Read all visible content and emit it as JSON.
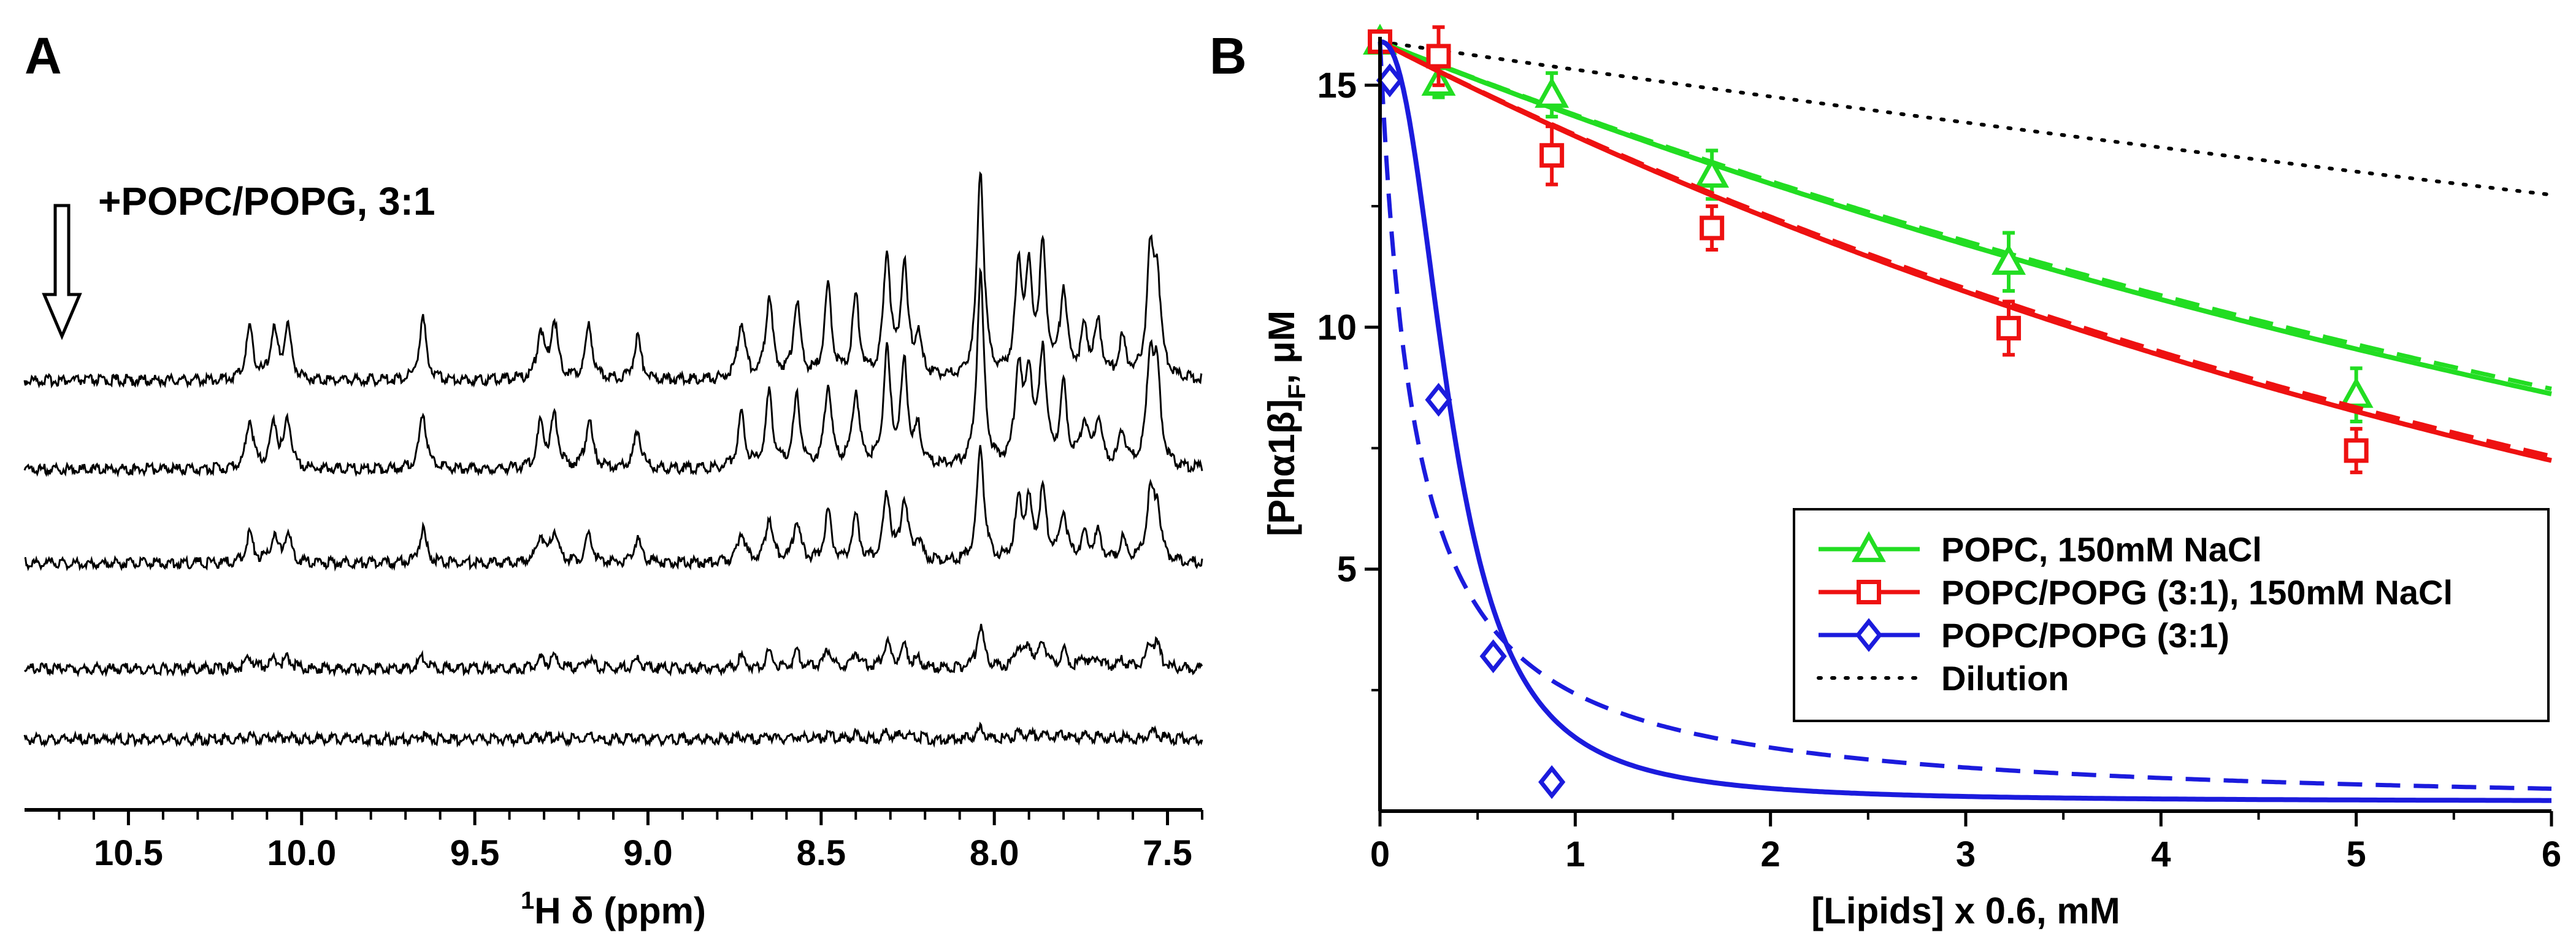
{
  "panels": {
    "a": {
      "letter": "A"
    },
    "b": {
      "letter": "B"
    }
  },
  "chart_data": [
    {
      "type": "line",
      "panel": "A",
      "title": "",
      "xlabel_sup": "1",
      "xlabel": "H δ (ppm)",
      "ylabel": "",
      "xlim": [
        10.8,
        7.4
      ],
      "x_reversed": true,
      "x_ticks": [
        10.5,
        10.0,
        9.5,
        9.0,
        8.5,
        8.0,
        7.5
      ],
      "x_tick_labels": [
        "10.5",
        "10.0",
        "9.5",
        "9.0",
        "8.5",
        "8.0",
        "7.5"
      ],
      "annotation": "+POPC/POPG, 3:1",
      "arrow_direction": "down",
      "grid": false,
      "series": [
        {
          "scale": 1.0,
          "peaks": [
            [
              10.15,
              0.55
            ],
            [
              10.08,
              0.5
            ],
            [
              10.04,
              0.55
            ],
            [
              9.65,
              0.65
            ],
            [
              9.31,
              0.5
            ],
            [
              9.27,
              0.6
            ],
            [
              9.17,
              0.55
            ],
            [
              9.03,
              0.45
            ],
            [
              8.73,
              0.6
            ],
            [
              8.65,
              0.85
            ],
            [
              8.57,
              0.8
            ],
            [
              8.48,
              0.95
            ],
            [
              8.4,
              0.85
            ],
            [
              8.31,
              1.3
            ],
            [
              8.26,
              1.15
            ],
            [
              8.22,
              0.4
            ],
            [
              8.04,
              2.2
            ],
            [
              7.93,
              1.1
            ],
            [
              7.9,
              1.0
            ],
            [
              7.86,
              1.3
            ],
            [
              7.8,
              0.9
            ],
            [
              7.74,
              0.5
            ],
            [
              7.7,
              0.55
            ],
            [
              7.63,
              0.4
            ],
            [
              7.55,
              1.2
            ],
            [
              7.53,
              1.0
            ]
          ]
        },
        {
          "scale": 0.92
        },
        {
          "scale": 0.55
        },
        {
          "scale": 0.2
        },
        {
          "scale": 0.05
        }
      ]
    },
    {
      "type": "scatter",
      "panel": "B",
      "title": "",
      "xlabel": "[Lipids] x 0.6, mM",
      "ylabel": "[Phα1β]F, μM",
      "ylabel_parts": {
        "pre": "[Phα1β]",
        "sub": "F",
        "post": ", μM"
      },
      "xlim": [
        0,
        6
      ],
      "ylim": [
        0,
        16
      ],
      "x_ticks": [
        0,
        1,
        2,
        3,
        4,
        5,
        6
      ],
      "x_tick_labels": [
        "0",
        "1",
        "2",
        "3",
        "4",
        "5",
        "6"
      ],
      "y_ticks": [
        5,
        10,
        15
      ],
      "y_tick_labels": [
        "5",
        "10",
        "15"
      ],
      "legend_position": "lower-right",
      "grid": false,
      "series": [
        {
          "name": "POPC, 150mM NaCl",
          "color": "#22dd22",
          "marker": "triangle",
          "x": [
            0,
            0.3,
            0.88,
            1.7,
            3.22,
            5.0
          ],
          "y": [
            15.9,
            15.05,
            14.8,
            13.15,
            11.35,
            8.6
          ],
          "err": [
            0,
            0.3,
            0.45,
            0.5,
            0.6,
            0.55
          ],
          "fit_solid": {
            "kind": "exp",
            "y0": 15.9,
            "k": 0.102
          },
          "fit_dashed": {
            "kind": "exp",
            "y0": 15.9,
            "k": 0.1
          }
        },
        {
          "name": "POPC/POPG (3:1), 150mM NaCl",
          "color": "#ee1111",
          "marker": "square",
          "x": [
            0,
            0.3,
            0.88,
            1.7,
            3.22,
            5.0
          ],
          "y": [
            15.9,
            15.6,
            13.55,
            12.05,
            9.98,
            7.45
          ],
          "err": [
            0,
            0.6,
            0.6,
            0.45,
            0.55,
            0.45
          ],
          "fit_solid": {
            "kind": "exp",
            "y0": 15.9,
            "k": 0.131
          },
          "fit_dashed": {
            "kind": "exp",
            "y0": 15.9,
            "k": 0.129
          }
        },
        {
          "name": "POPC/POPG (3:1)",
          "color": "#1b1bdd",
          "marker": "diamond",
          "x": [
            0.05,
            0.3,
            0.58,
            0.88
          ],
          "y": [
            15.1,
            8.5,
            3.2,
            0.6
          ],
          "err": [
            0,
            0,
            0,
            0
          ],
          "fit_solid": {
            "kind": "sigmoid",
            "y0": 15.9,
            "x50": 0.37,
            "n": 2.4,
            "ymin": 0.2
          },
          "fit_dashed": {
            "kind": "hyper",
            "y0": 15.9,
            "K": 0.18,
            "ymin": 0
          }
        }
      ],
      "dilution": {
        "name": "Dilution",
        "color": "#000000",
        "y0": 15.9,
        "k": 0.037
      }
    }
  ]
}
